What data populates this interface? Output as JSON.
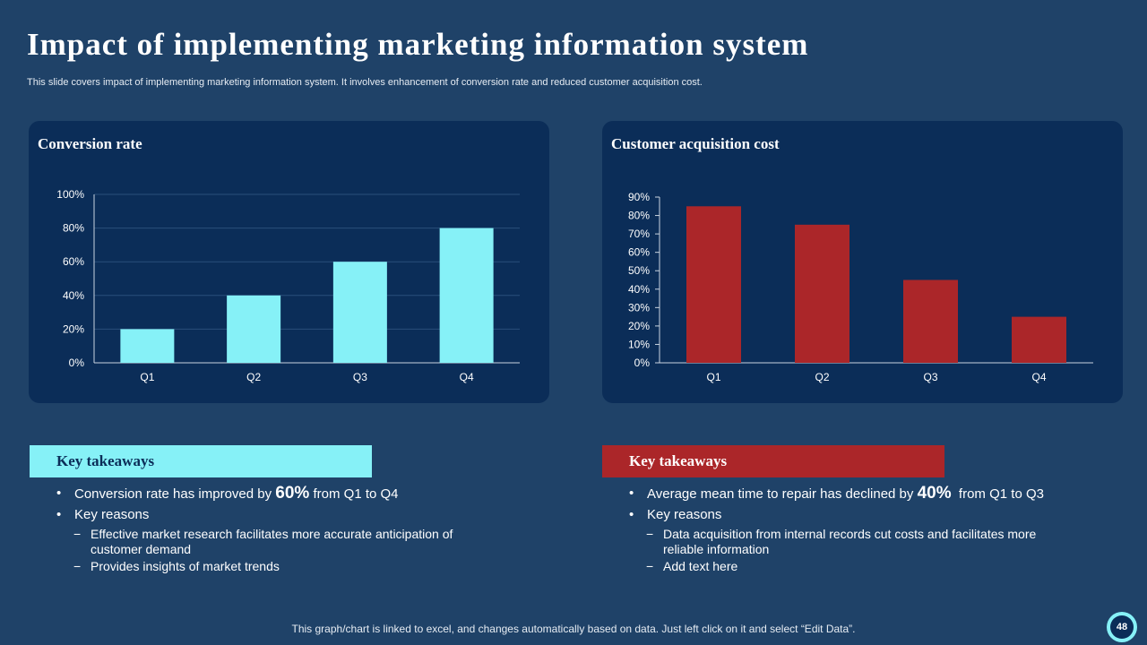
{
  "slide": {
    "title": "Impact of implementing marketing information system",
    "subtitle": "This slide covers impact of implementing marketing information system. It involves enhancement of conversion rate and reduced customer acquisition cost.",
    "footer": "This graph/chart is linked to excel,  and changes automatically based on data. Just left click on it and select “Edit Data”.",
    "page_number": "48"
  },
  "colors": {
    "background": "#1f4268",
    "panel": "#0b2d58",
    "cyan": "#86f1f7",
    "red": "#ab2629"
  },
  "chart_data": [
    {
      "type": "bar",
      "title": "Conversion rate",
      "categories": [
        "Q1",
        "Q2",
        "Q3",
        "Q4"
      ],
      "values": [
        20,
        40,
        60,
        80
      ],
      "ylim": [
        0,
        100
      ],
      "yticks": [
        0,
        20,
        40,
        60,
        80,
        100
      ],
      "ytick_labels": [
        "0%",
        "20%",
        "40%",
        "60%",
        "80%",
        "100%"
      ],
      "color": "#86f1f7",
      "grid": true,
      "xlabel": "",
      "ylabel": ""
    },
    {
      "type": "bar",
      "title": "Customer acquisition cost",
      "categories": [
        "Q1",
        "Q2",
        "Q3",
        "Q4"
      ],
      "values": [
        85,
        75,
        45,
        25
      ],
      "ylim": [
        0,
        90
      ],
      "yticks": [
        0,
        10,
        20,
        30,
        40,
        50,
        60,
        70,
        80,
        90
      ],
      "ytick_labels": [
        "0%",
        "10%",
        "20%",
        "30%",
        "40%",
        "50%",
        "60%",
        "70%",
        "80%",
        "90%"
      ],
      "color": "#ab2629",
      "grid": false,
      "xlabel": "",
      "ylabel": ""
    }
  ],
  "takeaways_left": {
    "header": "Key takeaways",
    "point1_pre": "Conversion rate has improved by ",
    "point1_value": "60%",
    "point1_post": " from Q1 to Q4",
    "point2": "Key reasons",
    "sub1": "Effective market research facilitates more accurate anticipation of customer demand",
    "sub2": "Provides insights of market trends"
  },
  "takeaways_right": {
    "header": "Key takeaways",
    "point1_pre": "Average mean time to repair has declined by ",
    "point1_value": "40%",
    "point1_post": "  from Q1 to Q3",
    "point2": "Key reasons",
    "sub1": "Data acquisition from internal records cut costs and facilitates more reliable information",
    "sub2": "Add text here"
  }
}
